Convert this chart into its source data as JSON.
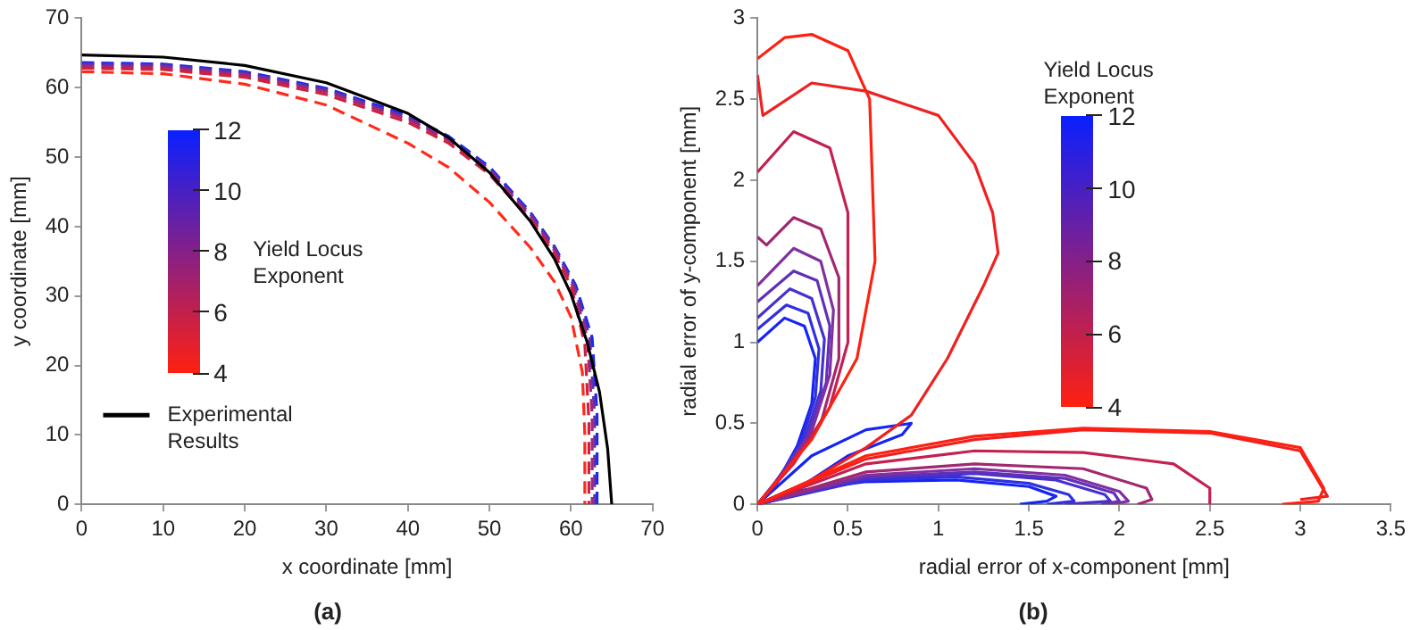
{
  "chart_data": [
    {
      "type": "line",
      "title": "(a)",
      "xlabel": "x coordinate [mm]",
      "ylabel": "y coordinate [mm]",
      "xlim": [
        0,
        70
      ],
      "ylim": [
        0,
        70
      ],
      "xticks": [
        0,
        10,
        20,
        30,
        40,
        50,
        60,
        70
      ],
      "yticks": [
        0,
        10,
        20,
        30,
        40,
        50,
        60,
        70
      ],
      "grid": false,
      "legend": "bottom left",
      "clabel": "Yield Locus Exponent",
      "annotations": [
        "4",
        "6",
        "8",
        "10",
        "12"
      ],
      "series": [
        {
          "name": "Experimental Results",
          "color": "#000000",
          "line_style": "solid",
          "x": [
            0,
            10,
            20,
            30,
            40,
            45,
            50,
            55,
            58,
            60,
            62,
            63.5,
            64.5,
            65
          ],
          "values": [
            64.7,
            64.4,
            63.2,
            60.7,
            56.3,
            52.8,
            47.8,
            40.8,
            35.3,
            30.3,
            23.3,
            16.2,
            8,
            0
          ]
        },
        {
          "color": "#ff2a1a",
          "line_style": "dashed",
          "x": [
            0,
            10,
            20,
            30,
            40,
            45,
            50,
            55,
            58,
            60,
            61.4,
            61.7,
            61.7
          ],
          "values": [
            62.3,
            62,
            60.5,
            57.5,
            52,
            48.5,
            43.5,
            37,
            32,
            27,
            19,
            10,
            0
          ]
        },
        {
          "color": "#d0203f",
          "line_style": "dashed",
          "x": [
            0,
            10,
            20,
            30,
            40,
            45,
            50,
            55,
            58,
            60,
            61.7,
            62.2,
            62.2
          ],
          "values": [
            62.8,
            62.6,
            61.5,
            59,
            55,
            52,
            47.5,
            41,
            36,
            31.5,
            23,
            12,
            0
          ]
        },
        {
          "color": "#a02878",
          "line_style": "dashed",
          "x": [
            0,
            10,
            20,
            30,
            40,
            45,
            50,
            55,
            58,
            60.2,
            62,
            62.6,
            62.6
          ],
          "values": [
            63.1,
            62.9,
            61.8,
            59.4,
            55.4,
            52.4,
            48,
            41.5,
            36.5,
            31.5,
            24,
            13,
            0
          ]
        },
        {
          "color": "#6030b0",
          "line_style": "dashed",
          "x": [
            0,
            10,
            20,
            30,
            40,
            45,
            50,
            55,
            58,
            60.4,
            62.3,
            62.9,
            62.9
          ],
          "values": [
            63.4,
            63.2,
            62.1,
            59.7,
            55.7,
            52.7,
            48.3,
            41.8,
            36.8,
            31.5,
            24,
            13,
            0
          ]
        },
        {
          "color": "#1a28f0",
          "line_style": "dashed",
          "x": [
            0,
            10,
            20,
            30,
            40,
            45,
            50,
            55,
            58,
            60.6,
            62.6,
            63.2,
            63.2
          ],
          "values": [
            63.6,
            63.4,
            62.3,
            59.9,
            56,
            53,
            48.6,
            42.1,
            37.1,
            31.5,
            24,
            13,
            0
          ]
        }
      ]
    },
    {
      "type": "line",
      "title": "(b)",
      "xlabel": "radial error of x-component [mm]",
      "ylabel": "radial error of y-component [mm]",
      "xlim": [
        0,
        3.5
      ],
      "ylim": [
        0,
        3
      ],
      "xticks": [
        0,
        0.5,
        1,
        1.5,
        2,
        2.5,
        3,
        3.5
      ],
      "yticks": [
        0,
        0.5,
        1,
        1.5,
        2,
        2.5,
        3
      ],
      "grid": false,
      "legend": false,
      "clabel": "Yield Locus Exponent",
      "annotations": [
        "4",
        "6",
        "8",
        "10",
        "12"
      ],
      "series": [
        {
          "color": "#ff2010",
          "x": [
            0,
            0.15,
            0.3,
            0.5,
            0.62,
            0.65,
            0.55,
            0.3,
            0,
            0.6,
            1.2,
            1.8,
            2.5,
            3,
            3.13,
            3.1,
            2.9
          ],
          "values": [
            2.75,
            2.88,
            2.9,
            2.8,
            2.5,
            1.5,
            0.9,
            0.4,
            0,
            0.3,
            0.42,
            0.47,
            0.45,
            0.35,
            0.1,
            0.02,
            0
          ]
        },
        {
          "color": "#f02020",
          "x": [
            0,
            0.03,
            0.3,
            0.6,
            1,
            1.2,
            1.3,
            1.33,
            1.25,
            1.05,
            0.85,
            0.6,
            0.3,
            0,
            0.6,
            1.2,
            1.8,
            2.5,
            3,
            3.15,
            3
          ],
          "values": [
            2.65,
            2.4,
            2.6,
            2.55,
            2.4,
            2.1,
            1.8,
            1.55,
            1.35,
            0.9,
            0.55,
            0.35,
            0.15,
            0,
            0.28,
            0.4,
            0.46,
            0.44,
            0.33,
            0.05,
            0.03
          ]
        },
        {
          "color": "#c42050",
          "x": [
            0,
            0.2,
            0.4,
            0.5,
            0.5,
            0.4,
            0.2,
            0,
            0.6,
            1.2,
            1.8,
            2.3,
            2.5,
            2.5
          ],
          "values": [
            2.05,
            2.3,
            2.2,
            1.8,
            1,
            0.6,
            0.25,
            0,
            0.25,
            0.33,
            0.32,
            0.25,
            0.1,
            0
          ]
        },
        {
          "color": "#a02870",
          "x": [
            0,
            0.05,
            0.2,
            0.35,
            0.45,
            0.45,
            0.35,
            0.15,
            0,
            0.6,
            1.2,
            1.8,
            2.15,
            2.18,
            2.1
          ],
          "values": [
            1.65,
            1.6,
            1.77,
            1.7,
            1.4,
            0.9,
            0.5,
            0.2,
            0,
            0.2,
            0.25,
            0.22,
            0.1,
            0.03,
            0
          ]
        },
        {
          "color": "#8030a0",
          "x": [
            0,
            0.2,
            0.35,
            0.42,
            0.4,
            0.3,
            0.12,
            0,
            0.6,
            1.2,
            1.7,
            2,
            2.05,
            1.95
          ],
          "values": [
            1.35,
            1.58,
            1.5,
            1.2,
            0.8,
            0.45,
            0.15,
            0,
            0.18,
            0.22,
            0.18,
            0.08,
            0.02,
            0
          ]
        },
        {
          "color": "#6030b8",
          "x": [
            0,
            0.2,
            0.33,
            0.4,
            0.38,
            0.28,
            0.1,
            0,
            0.6,
            1.2,
            1.7,
            1.97,
            2,
            1.9
          ],
          "values": [
            1.25,
            1.44,
            1.38,
            1.1,
            0.75,
            0.42,
            0.14,
            0,
            0.17,
            0.2,
            0.16,
            0.07,
            0.02,
            0
          ]
        },
        {
          "color": "#4530d0",
          "x": [
            0,
            0.18,
            0.3,
            0.37,
            0.35,
            0.26,
            0.1,
            0,
            0.6,
            1.2,
            1.65,
            1.92,
            1.95,
            1.7
          ],
          "values": [
            1.15,
            1.33,
            1.27,
            1.02,
            0.7,
            0.4,
            0.13,
            0,
            0.16,
            0.19,
            0.15,
            0.06,
            0.02,
            0
          ]
        },
        {
          "color": "#3030e0",
          "x": [
            0,
            0.16,
            0.28,
            0.34,
            0.32,
            0.24,
            0.1,
            0,
            0.6,
            1.1,
            1.5,
            1.72,
            1.75,
            1.6
          ],
          "values": [
            1.08,
            1.23,
            1.18,
            0.96,
            0.66,
            0.38,
            0.12,
            0,
            0.15,
            0.17,
            0.13,
            0.06,
            0.02,
            0
          ]
        },
        {
          "color": "#1525f5",
          "x": [
            0,
            0.15,
            0.26,
            0.32,
            0.3,
            0.22,
            0.1,
            0,
            0.3,
            0.6,
            0.85,
            0.8,
            0.5,
            0.2,
            0.6,
            1.1,
            1.5,
            1.65,
            1.6,
            1.45
          ],
          "values": [
            1,
            1.15,
            1.1,
            0.9,
            0.62,
            0.36,
            0.12,
            0,
            0.3,
            0.46,
            0.5,
            0.43,
            0.3,
            0.08,
            0.14,
            0.15,
            0.11,
            0.05,
            0.02,
            0
          ]
        }
      ]
    }
  ]
}
